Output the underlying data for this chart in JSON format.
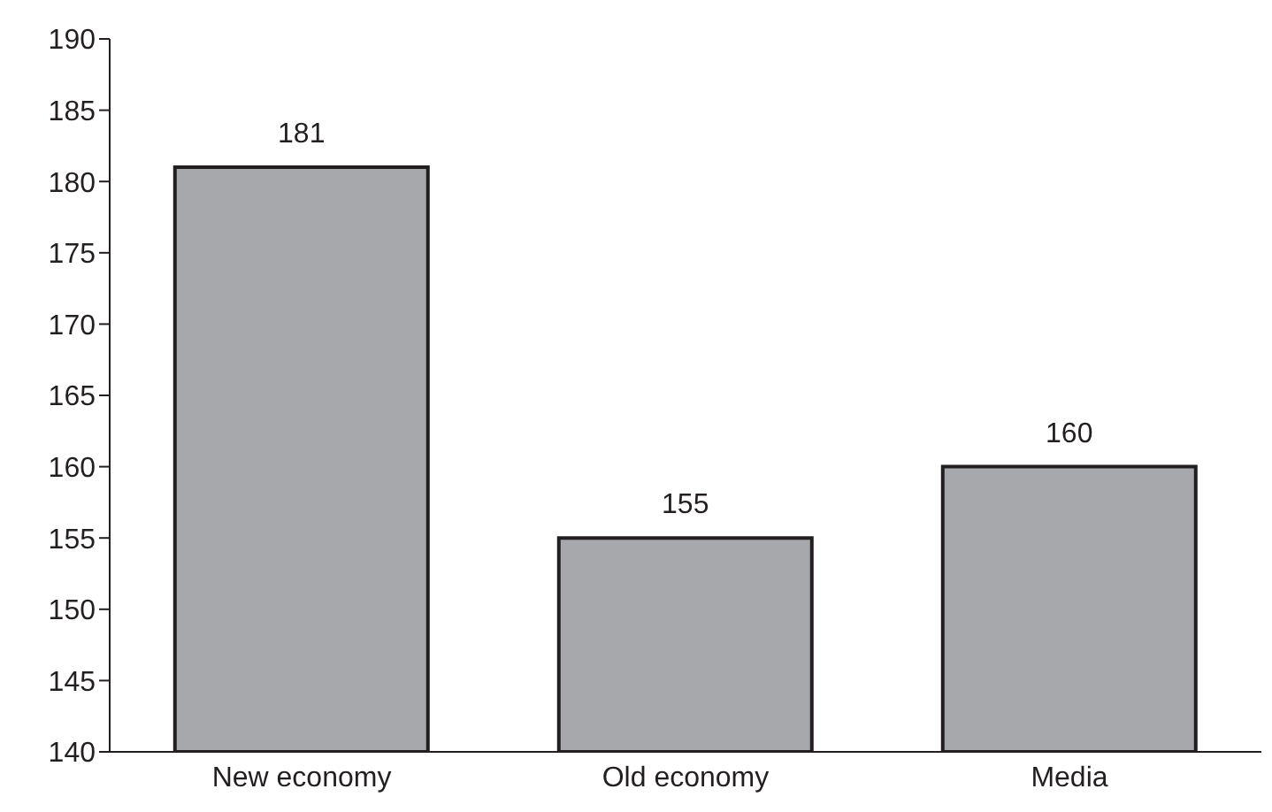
{
  "chart_data": {
    "type": "bar",
    "categories": [
      "New  economy",
      "Old economy",
      "Media"
    ],
    "values": [
      181,
      155,
      160
    ],
    "color": "#a7a8ab",
    "ylim": [
      140,
      190
    ],
    "yticks": [
      140,
      145,
      150,
      155,
      160,
      165,
      170,
      175,
      180,
      185,
      190
    ],
    "grid": false,
    "data_labels": true
  }
}
